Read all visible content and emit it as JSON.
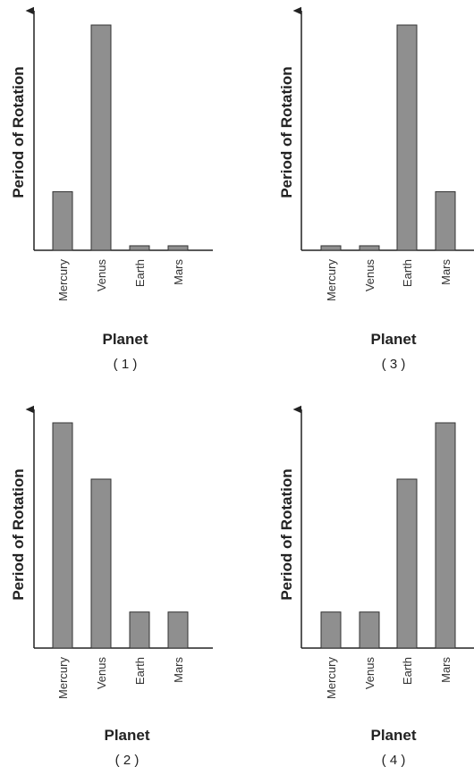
{
  "chart_data": [
    {
      "id": "1",
      "type": "bar",
      "panel_label": "( 1 )",
      "xlabel": "Planet",
      "ylabel": "Period of Rotation",
      "categories": [
        "Mercury",
        "Venus",
        "Earth",
        "Mars"
      ],
      "values": [
        26,
        100,
        2,
        2
      ],
      "ylim": [
        0,
        100
      ]
    },
    {
      "id": "3",
      "type": "bar",
      "panel_label": "( 3 )",
      "xlabel": "Planet",
      "ylabel": "Period of Rotation",
      "categories": [
        "Mercury",
        "Venus",
        "Earth",
        "Mars"
      ],
      "values": [
        2,
        2,
        100,
        26
      ],
      "ylim": [
        0,
        100
      ]
    },
    {
      "id": "2",
      "type": "bar",
      "panel_label": "( 2 )",
      "xlabel": "Planet",
      "ylabel": "Period of Rotation",
      "categories": [
        "Mercury",
        "Venus",
        "Earth",
        "Mars"
      ],
      "values": [
        100,
        75,
        16,
        16
      ],
      "ylim": [
        0,
        100
      ]
    },
    {
      "id": "4",
      "type": "bar",
      "panel_label": "( 4 )",
      "xlabel": "Planet",
      "ylabel": "Period of Rotation",
      "categories": [
        "Mercury",
        "Venus",
        "Earth",
        "Mars"
      ],
      "values": [
        16,
        16,
        75,
        100
      ],
      "ylim": [
        0,
        100
      ]
    }
  ],
  "colors": {
    "bar_fill": "#8f8f8f",
    "bar_stroke": "#333333",
    "axis": "#222222"
  }
}
